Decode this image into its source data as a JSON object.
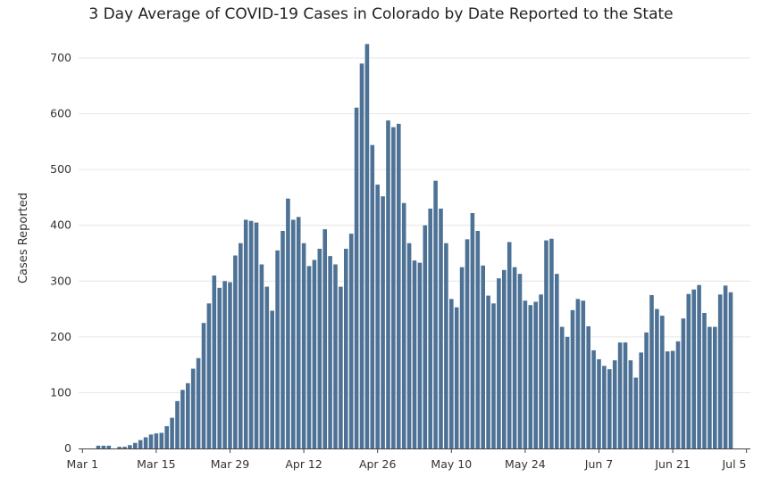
{
  "chart_data": {
    "type": "bar",
    "title": "3 Day Average of COVID-19 Cases in Colorado by Date Reported to the State",
    "xlabel": "",
    "ylabel": "Cases Reported",
    "ylim": [
      0,
      740
    ],
    "y_ticks": [
      0,
      100,
      200,
      300,
      400,
      500,
      600,
      700
    ],
    "x_ticks": [
      {
        "label": "Mar 1",
        "index": 0
      },
      {
        "label": "Mar 15",
        "index": 14
      },
      {
        "label": "Mar 29",
        "index": 28
      },
      {
        "label": "Apr 12",
        "index": 42
      },
      {
        "label": "Apr 26",
        "index": 56
      },
      {
        "label": "May 10",
        "index": 70
      },
      {
        "label": "May 24",
        "index": 84
      },
      {
        "label": "Jun 7",
        "index": 98
      },
      {
        "label": "Jun 21",
        "index": 112
      },
      {
        "label": "Jul 5",
        "index": 126
      }
    ],
    "start_date": "Mar 1",
    "values": [
      0,
      0,
      0,
      5,
      5,
      5,
      0,
      3,
      3,
      6,
      10,
      15,
      20,
      25,
      27,
      28,
      40,
      55,
      85,
      105,
      117,
      143,
      162,
      225,
      260,
      310,
      288,
      300,
      298,
      346,
      368,
      410,
      408,
      405,
      330,
      290,
      247,
      355,
      390,
      448,
      410,
      415,
      368,
      327,
      338,
      358,
      393,
      345,
      330,
      290,
      358,
      385,
      611,
      690,
      725,
      544,
      473,
      452,
      588,
      576,
      582,
      440,
      368,
      337,
      333,
      400,
      430,
      480,
      430,
      368,
      268,
      253,
      325,
      375,
      422,
      390,
      328,
      274,
      260,
      305,
      320,
      370,
      325,
      313,
      265,
      257,
      263,
      276,
      373,
      376,
      313,
      218,
      200,
      248,
      268,
      265,
      219,
      176,
      160,
      148,
      142,
      158,
      190,
      190,
      158,
      127,
      172,
      208,
      275,
      250,
      238,
      174,
      175,
      192,
      233,
      277,
      285,
      293,
      243,
      218,
      218,
      276,
      292,
      280
    ]
  },
  "colors": {
    "bar": "#4e7296",
    "grid": "#e6e6e6",
    "axis": "#444444"
  }
}
